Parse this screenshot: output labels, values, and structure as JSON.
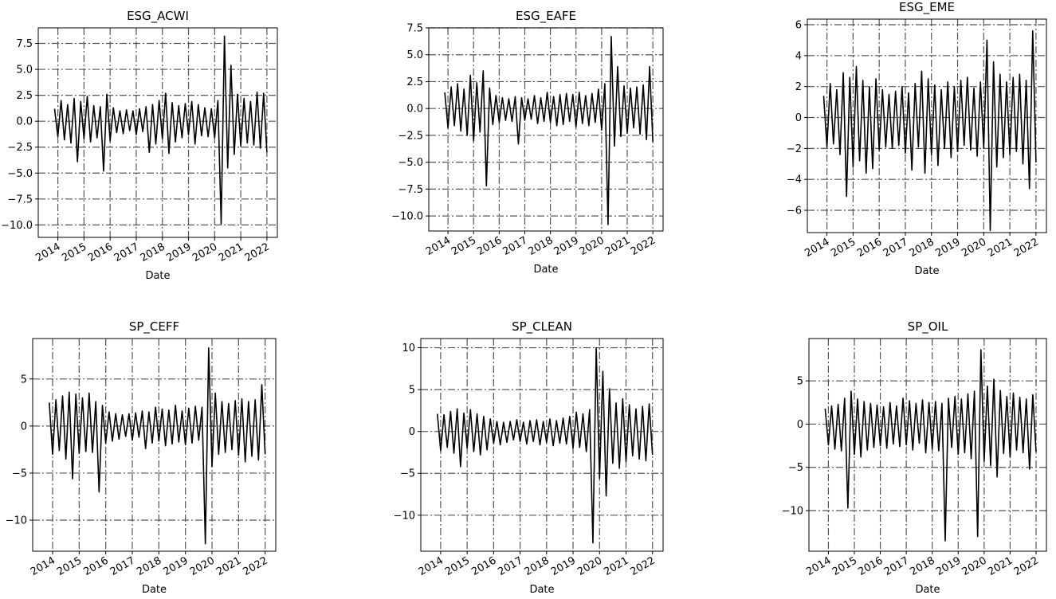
{
  "chart_data": [
    {
      "type": "line",
      "title": "ESG_ACWI",
      "xlabel": "Date",
      "color": "#000000",
      "grid": true,
      "x": [
        2013.875,
        2014,
        2014.125,
        2014.25,
        2014.375,
        2014.5,
        2014.625,
        2014.75,
        2014.875,
        2015,
        2015.125,
        2015.25,
        2015.375,
        2015.5,
        2015.625,
        2015.75,
        2015.875,
        2016,
        2016.125,
        2016.25,
        2016.375,
        2016.5,
        2016.625,
        2016.75,
        2016.875,
        2017,
        2017.125,
        2017.25,
        2017.375,
        2017.5,
        2017.625,
        2017.75,
        2017.875,
        2018,
        2018.125,
        2018.25,
        2018.375,
        2018.5,
        2018.625,
        2018.75,
        2018.875,
        2019,
        2019.125,
        2019.25,
        2019.375,
        2019.5,
        2019.625,
        2019.75,
        2019.875,
        2020,
        2020.125,
        2020.25,
        2020.375,
        2020.5,
        2020.625,
        2020.75,
        2020.875,
        2021,
        2021.125,
        2021.25,
        2021.375,
        2021.5,
        2021.625,
        2021.75,
        2021.875,
        2022
      ],
      "values": [
        1.2,
        -1.5,
        2.0,
        -1.8,
        1.6,
        -2.1,
        2.2,
        -3.9,
        1.9,
        -1.7,
        2.4,
        -2.0,
        1.5,
        -1.6,
        1.4,
        -4.8,
        2.6,
        -1.9,
        1.3,
        -1.1,
        1.0,
        -1.2,
        1.1,
        -0.9,
        1.0,
        -1.3,
        1.2,
        -1.0,
        1.4,
        -3.0,
        1.6,
        -2.2,
        2.0,
        -1.7,
        2.7,
        -3.1,
        1.8,
        -2.0,
        1.5,
        -1.6,
        1.7,
        -1.3,
        1.9,
        -2.2,
        1.6,
        -1.4,
        1.3,
        -1.5,
        1.2,
        -1.6,
        2.0,
        -9.9,
        8.2,
        -4.5,
        5.4,
        -3.2,
        2.6,
        -2.4,
        2.2,
        -2.1,
        1.9,
        -2.3,
        2.8,
        -2.6,
        2.7,
        -3.0
      ],
      "xlim": [
        2013.25,
        2022.4
      ],
      "xticks": [
        2014,
        2015,
        2016,
        2017,
        2018,
        2019,
        2020,
        2021,
        2022
      ],
      "ylim": [
        -11.2,
        9.0
      ],
      "yticks": [
        {
          "value": -10,
          "label": "−10.0"
        },
        {
          "value": -7.5,
          "label": "−7.5"
        },
        {
          "value": -5,
          "label": "−5.0"
        },
        {
          "value": -2.5,
          "label": "−2.5"
        },
        {
          "value": 0,
          "label": "0.0"
        },
        {
          "value": 2.5,
          "label": "2.5"
        },
        {
          "value": 5,
          "label": "5.0"
        },
        {
          "value": 7.5,
          "label": "7.5"
        }
      ]
    },
    {
      "type": "line",
      "title": "ESG_EAFE",
      "xlabel": "Date",
      "color": "#000000",
      "grid": true,
      "x": [
        2013.875,
        2014,
        2014.125,
        2014.25,
        2014.375,
        2014.5,
        2014.625,
        2014.75,
        2014.875,
        2015,
        2015.125,
        2015.25,
        2015.375,
        2015.5,
        2015.625,
        2015.75,
        2015.875,
        2016,
        2016.125,
        2016.25,
        2016.375,
        2016.5,
        2016.625,
        2016.75,
        2016.875,
        2017,
        2017.125,
        2017.25,
        2017.375,
        2017.5,
        2017.625,
        2017.75,
        2017.875,
        2018,
        2018.125,
        2018.25,
        2018.375,
        2018.5,
        2018.625,
        2018.75,
        2018.875,
        2019,
        2019.125,
        2019.25,
        2019.375,
        2019.5,
        2019.625,
        2019.75,
        2019.875,
        2020,
        2020.125,
        2020.25,
        2020.375,
        2020.5,
        2020.625,
        2020.75,
        2020.875,
        2021,
        2021.125,
        2021.25,
        2021.375,
        2021.5,
        2021.625,
        2021.75,
        2021.875,
        2022
      ],
      "values": [
        1.5,
        -1.8,
        2.0,
        -1.6,
        2.3,
        -2.1,
        1.8,
        -2.5,
        3.1,
        -3.0,
        2.4,
        -2.2,
        3.5,
        -7.2,
        1.9,
        -1.5,
        1.2,
        -1.3,
        1.0,
        -1.1,
        0.9,
        -1.2,
        1.1,
        -3.3,
        1.0,
        -1.1,
        0.9,
        -1.0,
        1.2,
        -1.4,
        1.0,
        -1.2,
        1.5,
        -1.3,
        1.1,
        -1.6,
        1.3,
        -1.5,
        1.4,
        -1.2,
        1.3,
        -1.7,
        1.5,
        -1.4,
        1.2,
        -1.6,
        1.4,
        -1.3,
        1.8,
        -2.0,
        2.3,
        -10.8,
        6.7,
        -3.5,
        3.9,
        -2.6,
        2.1,
        -2.3,
        1.9,
        -1.8,
        2.0,
        -2.4,
        2.2,
        -2.9,
        3.9,
        -3.1
      ],
      "xlim": [
        2013.25,
        2022.4
      ],
      "xticks": [
        2014,
        2015,
        2016,
        2017,
        2018,
        2019,
        2020,
        2021,
        2022
      ],
      "ylim": [
        -11.4,
        7.5
      ],
      "yticks": [
        {
          "value": -10,
          "label": "−10.0"
        },
        {
          "value": -7.5,
          "label": "−7.5"
        },
        {
          "value": -5,
          "label": "−5.0"
        },
        {
          "value": -2.5,
          "label": "−2.5"
        },
        {
          "value": 0,
          "label": "0.0"
        },
        {
          "value": 2.5,
          "label": "2.5"
        },
        {
          "value": 5,
          "label": "5.0"
        },
        {
          "value": 7.5,
          "label": "7.5"
        }
      ]
    },
    {
      "type": "line",
      "title": "ESG_EME",
      "xlabel": "Date",
      "color": "#000000",
      "grid": true,
      "x": [
        2013.875,
        2014,
        2014.125,
        2014.25,
        2014.375,
        2014.5,
        2014.625,
        2014.75,
        2014.875,
        2015,
        2015.125,
        2015.25,
        2015.375,
        2015.5,
        2015.625,
        2015.75,
        2015.875,
        2016,
        2016.125,
        2016.25,
        2016.375,
        2016.5,
        2016.625,
        2016.75,
        2016.875,
        2017,
        2017.125,
        2017.25,
        2017.375,
        2017.5,
        2017.625,
        2017.75,
        2017.875,
        2018,
        2018.125,
        2018.25,
        2018.375,
        2018.5,
        2018.625,
        2018.75,
        2018.875,
        2019,
        2019.125,
        2019.25,
        2019.375,
        2019.5,
        2019.625,
        2019.75,
        2019.875,
        2020,
        2020.125,
        2020.25,
        2020.375,
        2020.5,
        2020.625,
        2020.75,
        2020.875,
        2021,
        2021.125,
        2021.25,
        2021.375,
        2021.5,
        2021.625,
        2021.75,
        2021.875,
        2022
      ],
      "values": [
        1.4,
        -1.9,
        2.2,
        -1.7,
        1.8,
        -2.4,
        2.9,
        -5.1,
        2.6,
        -3.2,
        3.3,
        -2.8,
        2.4,
        -3.6,
        2.0,
        -3.3,
        2.5,
        -2.1,
        1.8,
        -1.9,
        1.5,
        -2.0,
        1.7,
        -1.8,
        2.0,
        -2.3,
        1.6,
        -3.4,
        2.2,
        -1.9,
        3.0,
        -3.6,
        2.5,
        -2.4,
        2.1,
        -3.1,
        1.8,
        -2.0,
        2.3,
        -2.6,
        2.0,
        -2.2,
        2.4,
        -1.8,
        2.6,
        -2.1,
        1.9,
        -2.5,
        2.3,
        -2.0,
        5.0,
        -7.3,
        3.6,
        -3.2,
        2.8,
        -2.6,
        2.3,
        -2.4,
        2.6,
        -2.2,
        2.8,
        -3.0,
        2.4,
        -4.6,
        5.6,
        -2.9
      ],
      "xlim": [
        2013.25,
        2022.4
      ],
      "xticks": [
        2014,
        2015,
        2016,
        2017,
        2018,
        2019,
        2020,
        2021,
        2022
      ],
      "ylim": [
        -7.44,
        6.36
      ],
      "yticks": [
        {
          "value": -6,
          "label": "−6"
        },
        {
          "value": -4,
          "label": "−4"
        },
        {
          "value": -2,
          "label": "−2"
        },
        0,
        2,
        4,
        6
      ]
    },
    {
      "type": "line",
      "title": "SP_CEFF",
      "xlabel": "Date",
      "color": "#000000",
      "grid": true,
      "x": [
        2013.875,
        2014,
        2014.125,
        2014.25,
        2014.375,
        2014.5,
        2014.625,
        2014.75,
        2014.875,
        2015,
        2015.125,
        2015.25,
        2015.375,
        2015.5,
        2015.625,
        2015.75,
        2015.875,
        2016,
        2016.125,
        2016.25,
        2016.375,
        2016.5,
        2016.625,
        2016.75,
        2016.875,
        2017,
        2017.125,
        2017.25,
        2017.375,
        2017.5,
        2017.625,
        2017.75,
        2017.875,
        2018,
        2018.125,
        2018.25,
        2018.375,
        2018.5,
        2018.625,
        2018.75,
        2018.875,
        2019,
        2019.125,
        2019.25,
        2019.375,
        2019.5,
        2019.625,
        2019.75,
        2019.875,
        2020,
        2020.125,
        2020.25,
        2020.375,
        2020.5,
        2020.625,
        2020.75,
        2020.875,
        2021,
        2021.125,
        2021.25,
        2021.375,
        2021.5,
        2021.625,
        2021.75,
        2021.875,
        2022
      ],
      "values": [
        2.5,
        -3.0,
        2.8,
        -2.6,
        3.2,
        -3.5,
        3.6,
        -5.6,
        3.4,
        -2.9,
        3.0,
        -2.7,
        3.5,
        -2.8,
        2.6,
        -7.0,
        2.2,
        -1.8,
        1.5,
        -1.6,
        1.3,
        -1.4,
        1.2,
        -1.1,
        1.3,
        -1.5,
        1.4,
        -1.2,
        1.6,
        -2.4,
        1.5,
        -1.8,
        2.0,
        -1.6,
        1.8,
        -2.1,
        1.7,
        -1.9,
        2.2,
        -1.7,
        1.6,
        -2.0,
        1.9,
        -1.8,
        2.1,
        -1.5,
        2.0,
        -12.5,
        8.3,
        -4.3,
        3.5,
        -3.0,
        2.6,
        -2.8,
        2.4,
        -2.5,
        2.7,
        -3.1,
        2.9,
        -3.8,
        2.6,
        -3.2,
        2.8,
        -3.6,
        4.4,
        -3.0
      ],
      "xlim": [
        2013.25,
        2022.4
      ],
      "xticks": [
        2014,
        2015,
        2016,
        2017,
        2018,
        2019,
        2020,
        2021,
        2022
      ],
      "ylim": [
        -13.3,
        9.3
      ],
      "yticks": [
        {
          "value": -10,
          "label": "−10"
        },
        {
          "value": -5,
          "label": "−5"
        },
        0,
        5
      ]
    },
    {
      "type": "line",
      "title": "SP_CLEAN",
      "xlabel": "Date",
      "color": "#000000",
      "grid": true,
      "x": [
        2013.875,
        2014,
        2014.125,
        2014.25,
        2014.375,
        2014.5,
        2014.625,
        2014.75,
        2014.875,
        2015,
        2015.125,
        2015.25,
        2015.375,
        2015.5,
        2015.625,
        2015.75,
        2015.875,
        2016,
        2016.125,
        2016.25,
        2016.375,
        2016.5,
        2016.625,
        2016.75,
        2016.875,
        2017,
        2017.125,
        2017.25,
        2017.375,
        2017.5,
        2017.625,
        2017.75,
        2017.875,
        2018,
        2018.125,
        2018.25,
        2018.375,
        2018.5,
        2018.625,
        2018.75,
        2018.875,
        2019,
        2019.125,
        2019.25,
        2019.375,
        2019.5,
        2019.625,
        2019.75,
        2019.875,
        2020,
        2020.125,
        2020.25,
        2020.375,
        2020.5,
        2020.625,
        2020.75,
        2020.875,
        2021,
        2021.125,
        2021.25,
        2021.375,
        2021.5,
        2021.625,
        2021.75,
        2021.875,
        2022
      ],
      "values": [
        2.1,
        -2.3,
        2.0,
        -1.9,
        2.4,
        -2.6,
        2.7,
        -4.2,
        2.2,
        -2.0,
        2.6,
        -2.4,
        2.1,
        -2.8,
        1.8,
        -2.2,
        1.5,
        -1.4,
        1.2,
        -1.6,
        1.1,
        -1.3,
        1.2,
        -1.0,
        1.4,
        -1.2,
        1.1,
        -1.5,
        1.3,
        -1.2,
        1.4,
        -1.6,
        1.2,
        -1.3,
        1.5,
        -1.7,
        1.3,
        -1.4,
        1.6,
        -1.5,
        1.8,
        -2.0,
        2.3,
        -1.9,
        2.1,
        -2.4,
        2.6,
        -13.3,
        10.0,
        -5.6,
        7.2,
        -7.7,
        5.1,
        -3.8,
        3.4,
        -4.4,
        3.9,
        -3.6,
        3.2,
        -2.9,
        2.7,
        -3.3,
        3.0,
        -3.5,
        3.3,
        -2.8
      ],
      "xlim": [
        2013.25,
        2022.4
      ],
      "xticks": [
        2014,
        2015,
        2016,
        2017,
        2018,
        2019,
        2020,
        2021,
        2022
      ],
      "ylim": [
        -14.3,
        11.1
      ],
      "yticks": [
        {
          "value": -10,
          "label": "−10"
        },
        {
          "value": -5,
          "label": "−5"
        },
        0,
        5,
        10
      ]
    },
    {
      "type": "line",
      "title": "SP_OIL",
      "xlabel": "Date",
      "color": "#000000",
      "grid": true,
      "x": [
        2013.875,
        2014,
        2014.125,
        2014.25,
        2014.375,
        2014.5,
        2014.625,
        2014.75,
        2014.875,
        2015,
        2015.125,
        2015.25,
        2015.375,
        2015.5,
        2015.625,
        2015.75,
        2015.875,
        2016,
        2016.125,
        2016.25,
        2016.375,
        2016.5,
        2016.625,
        2016.75,
        2016.875,
        2017,
        2017.125,
        2017.25,
        2017.375,
        2017.5,
        2017.625,
        2017.75,
        2017.875,
        2018,
        2018.125,
        2018.25,
        2018.375,
        2018.5,
        2018.625,
        2018.75,
        2018.875,
        2019,
        2019.125,
        2019.25,
        2019.375,
        2019.5,
        2019.625,
        2019.75,
        2019.875,
        2020,
        2020.125,
        2020.25,
        2020.375,
        2020.5,
        2020.625,
        2020.75,
        2020.875,
        2021,
        2021.125,
        2021.25,
        2021.375,
        2021.5,
        2021.625,
        2021.75,
        2021.875,
        2022
      ],
      "values": [
        1.8,
        -2.4,
        2.1,
        -2.9,
        2.3,
        -3.1,
        3.0,
        -9.7,
        3.8,
        -3.5,
        2.9,
        -3.8,
        2.6,
        -3.0,
        2.4,
        -2.7,
        2.2,
        -2.5,
        2.0,
        -2.8,
        2.5,
        -2.3,
        2.1,
        -2.6,
        3.0,
        -2.4,
        2.7,
        -3.0,
        2.4,
        -2.2,
        2.8,
        -3.3,
        2.5,
        -2.9,
        2.6,
        -3.1,
        2.4,
        -13.5,
        3.0,
        -2.7,
        3.2,
        -3.5,
        2.9,
        -3.3,
        3.5,
        -4.0,
        3.8,
        -13.0,
        8.6,
        -4.3,
        4.4,
        -4.8,
        5.2,
        -6.1,
        3.9,
        -3.4,
        3.2,
        -3.8,
        3.6,
        -3.0,
        3.1,
        -3.3,
        2.9,
        -5.2,
        3.4,
        -3.2
      ],
      "xlim": [
        2013.25,
        2022.4
      ],
      "xticks": [
        2014,
        2015,
        2016,
        2017,
        2018,
        2019,
        2020,
        2021,
        2022
      ],
      "ylim": [
        -14.7,
        9.9
      ],
      "yticks": [
        {
          "value": -10,
          "label": "−10"
        },
        {
          "value": -5,
          "label": "−5"
        },
        0,
        5
      ]
    }
  ]
}
